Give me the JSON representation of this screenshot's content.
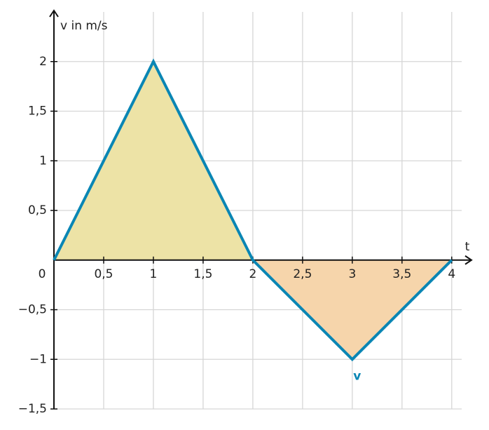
{
  "chart_data": {
    "type": "line",
    "x_label": "t",
    "y_label": "v in m/s",
    "x": [
      0,
      1,
      2,
      3,
      4
    ],
    "series": [
      {
        "name": "v",
        "color": "#0a86b4",
        "values": [
          0,
          2,
          0,
          -1,
          0
        ]
      }
    ],
    "area_colors": {
      "positive": "#ede3a6",
      "negative": "#f6d5ab"
    },
    "xlim": [
      0,
      4.1
    ],
    "ylim": [
      -1.5,
      2.5
    ],
    "xticks": [
      0,
      {
        "value": 0.5,
        "label": "0,5"
      },
      1,
      {
        "value": 1.5,
        "label": "1,5"
      },
      2,
      {
        "value": 2.5,
        "label": "2,5"
      },
      3,
      {
        "value": 3.5,
        "label": "3,5"
      },
      4
    ],
    "yticks": [
      {
        "value": -1.5,
        "label": "−1,5"
      },
      {
        "value": -1,
        "label": "−1"
      },
      {
        "value": -0.5,
        "label": "−0,5"
      },
      {
        "value": 0.5,
        "label": "0,5"
      },
      1,
      {
        "value": 1.5,
        "label": "1,5"
      },
      2
    ],
    "grid": true
  }
}
